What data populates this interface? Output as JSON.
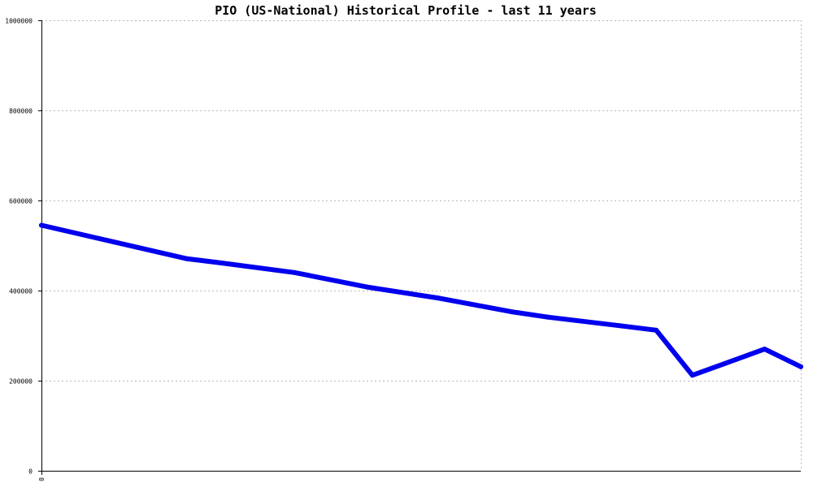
{
  "chart_data": {
    "type": "line",
    "title": "PIO (US-National) Historical Profile - last 11 years",
    "xlabel": "",
    "ylabel": "",
    "x_tick_labels": [
      "0"
    ],
    "y_tick_labels": [
      "0",
      "200000",
      "400000",
      "600000",
      "800000",
      "1000000"
    ],
    "y_ticks": [
      0,
      200000,
      400000,
      600000,
      800000,
      1000000
    ],
    "ylim": [
      0,
      1000000
    ],
    "xlim": [
      0,
      21
    ],
    "grid": true,
    "legend": "none",
    "series": [
      {
        "color": "#0000ee",
        "x": [
          0,
          2,
          4,
          5,
          7,
          9,
          11,
          13,
          14,
          16,
          17,
          18,
          20,
          21
        ],
        "values": [
          545000,
          508000,
          471000,
          461000,
          440000,
          408000,
          383000,
          353000,
          341000,
          322000,
          312000,
          212000,
          270000,
          231000
        ]
      }
    ]
  }
}
